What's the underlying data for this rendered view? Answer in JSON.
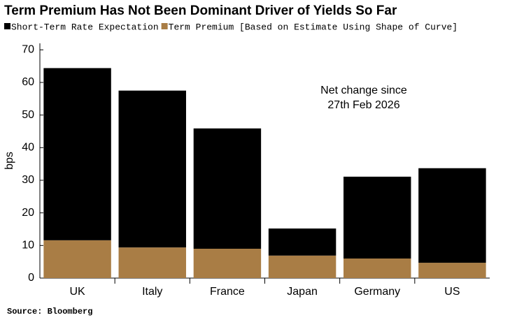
{
  "chart_data": {
    "type": "stacked_bar",
    "title": "Term Premium Has Not Been Dominant Driver of Yields So Far",
    "y_label": "bps",
    "annotation": [
      "Net change since",
      "27th Feb 2026"
    ],
    "source": "Source: Bloomberg",
    "categories": [
      "UK",
      "Italy",
      "France",
      "Japan",
      "Germany",
      "US"
    ],
    "series": [
      {
        "name": "Short-Term Rate Expectation",
        "color": "#000000",
        "values": [
          52.8,
          48.1,
          36.9,
          8.3,
          25.1,
          29.0
        ]
      },
      {
        "name": "Term Premium [Based on Estimate Using Shape of Curve]",
        "color": "#a97d45",
        "values": [
          11.6,
          9.4,
          9.0,
          6.9,
          6.0,
          4.7
        ]
      }
    ],
    "ylim": [
      0,
      72
    ],
    "yticks": [
      0,
      10,
      20,
      30,
      40,
      50,
      60,
      70
    ],
    "grid": false
  }
}
